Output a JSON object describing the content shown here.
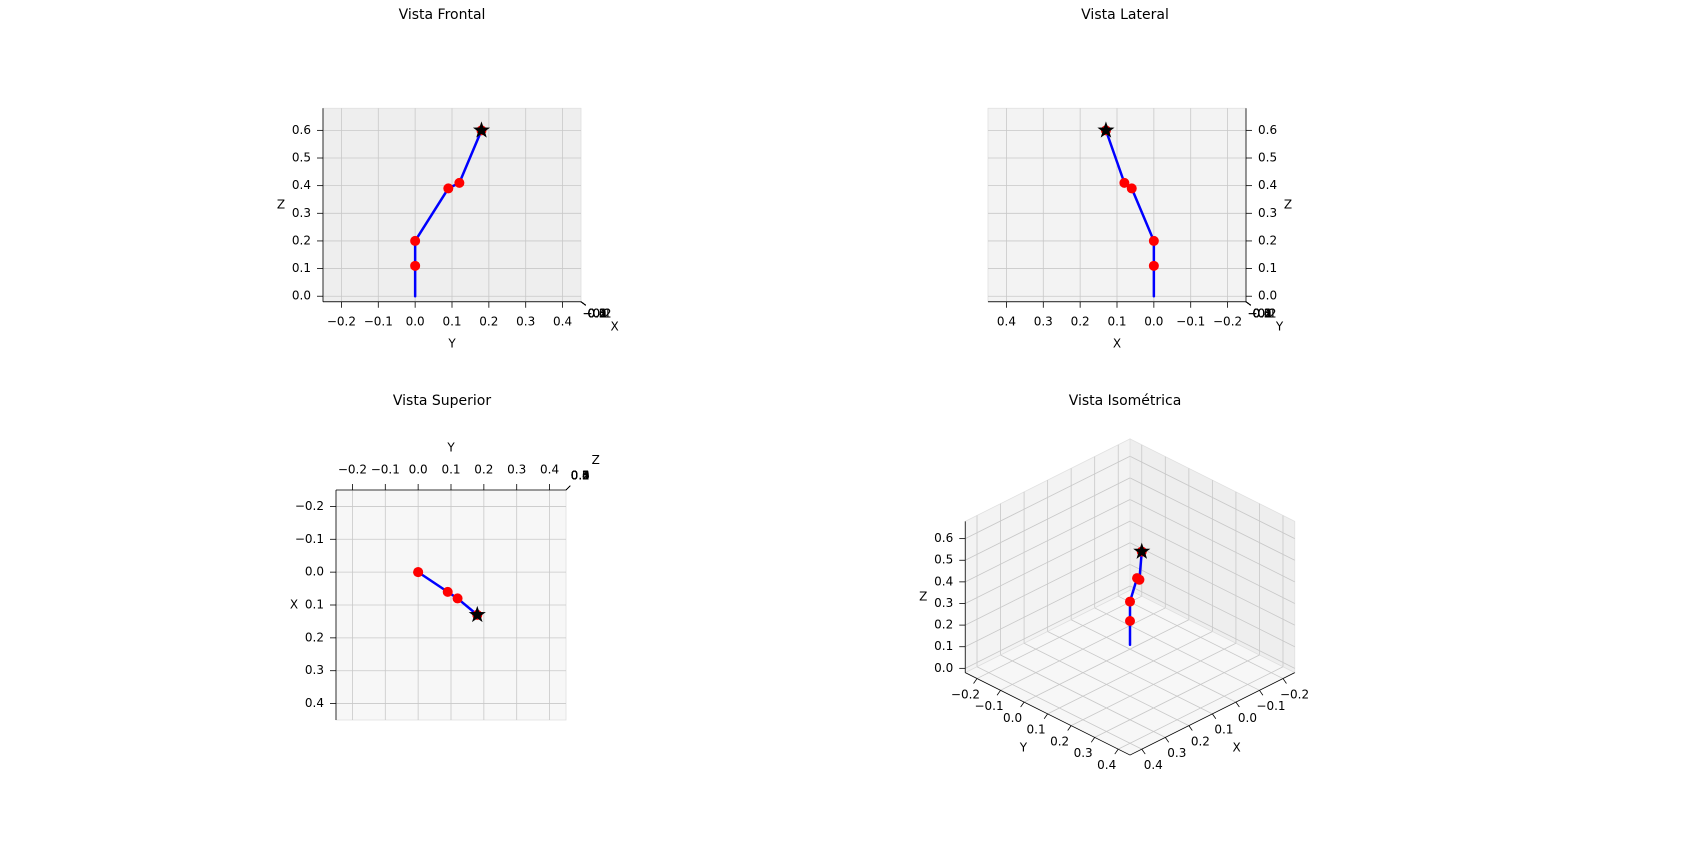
{
  "chart_data": [
    {
      "type": "line3d",
      "title": "Vista Frontal",
      "xlabel": "X",
      "ylabel": "Y",
      "zlabel": "Z",
      "elev": 0,
      "azim": 0,
      "xlim": [
        -0.25,
        0.45
      ],
      "ylim": [
        -0.25,
        0.45
      ],
      "zlim": [
        -0.02,
        0.68
      ],
      "xticks": [
        {
          "value": -0.2,
          "label": "−0.2"
        },
        {
          "value": -0.1,
          "label": "−0.1"
        },
        {
          "value": 0,
          "label": "0.0"
        },
        {
          "value": 0.1,
          "label": "0.1"
        },
        {
          "value": 0.2,
          "label": "0.2"
        },
        {
          "value": 0.3,
          "label": "0.3"
        },
        {
          "value": 0.4,
          "label": "0.4"
        }
      ],
      "yticks": [
        {
          "value": -0.2,
          "label": "−0.2"
        },
        {
          "value": -0.1,
          "label": "−0.1"
        },
        {
          "value": 0,
          "label": "0.0"
        },
        {
          "value": 0.1,
          "label": "0.1"
        },
        {
          "value": 0.2,
          "label": "0.2"
        },
        {
          "value": 0.3,
          "label": "0.3"
        },
        {
          "value": 0.4,
          "label": "0.4"
        }
      ],
      "zticks": [
        {
          "value": 0,
          "label": "0.0"
        },
        {
          "value": 0.1,
          "label": "0.1"
        },
        {
          "value": 0.2,
          "label": "0.2"
        },
        {
          "value": 0.3,
          "label": "0.3"
        },
        {
          "value": 0.4,
          "label": "0.4"
        },
        {
          "value": 0.5,
          "label": "0.5"
        },
        {
          "value": 0.6,
          "label": "0.6"
        }
      ],
      "links": {
        "color": "#0000ff",
        "x": [
          0,
          0,
          0,
          0.06,
          0.08,
          0.13
        ],
        "y": [
          0,
          0,
          0,
          0.09,
          0.12,
          0.18
        ],
        "z": [
          0,
          0.11,
          0.2,
          0.39,
          0.41,
          0.6
        ]
      },
      "joints": {
        "color": "#ff0000",
        "x": [
          0,
          0,
          0.06,
          0.08,
          0.13
        ],
        "y": [
          0,
          0,
          0.09,
          0.12,
          0.18
        ],
        "z": [
          0.11,
          0.2,
          0.39,
          0.41,
          0.6
        ]
      },
      "end_effector": {
        "color": "#000000",
        "x": [
          0.13
        ],
        "y": [
          0.18
        ],
        "z": [
          0.6
        ]
      }
    },
    {
      "type": "line3d",
      "title": "Vista Lateral",
      "xlabel": "X",
      "ylabel": "Y",
      "zlabel": "Z",
      "elev": 0,
      "azim": 90,
      "xlim": [
        -0.25,
        0.45
      ],
      "ylim": [
        -0.25,
        0.45
      ],
      "zlim": [
        -0.02,
        0.68
      ],
      "xticks": [
        {
          "value": -0.2,
          "label": "−0.2"
        },
        {
          "value": -0.1,
          "label": "−0.1"
        },
        {
          "value": 0,
          "label": "0.0"
        },
        {
          "value": 0.1,
          "label": "0.1"
        },
        {
          "value": 0.2,
          "label": "0.2"
        },
        {
          "value": 0.3,
          "label": "0.3"
        },
        {
          "value": 0.4,
          "label": "0.4"
        }
      ],
      "yticks": [
        {
          "value": -0.2,
          "label": "−0.2"
        },
        {
          "value": -0.1,
          "label": "−0.1"
        },
        {
          "value": 0,
          "label": "0.0"
        },
        {
          "value": 0.1,
          "label": "0.1"
        },
        {
          "value": 0.2,
          "label": "0.2"
        },
        {
          "value": 0.3,
          "label": "0.3"
        },
        {
          "value": 0.4,
          "label": "0.4"
        }
      ],
      "zticks": [
        {
          "value": 0,
          "label": "0.0"
        },
        {
          "value": 0.1,
          "label": "0.1"
        },
        {
          "value": 0.2,
          "label": "0.2"
        },
        {
          "value": 0.3,
          "label": "0.3"
        },
        {
          "value": 0.4,
          "label": "0.4"
        },
        {
          "value": 0.5,
          "label": "0.5"
        },
        {
          "value": 0.6,
          "label": "0.6"
        }
      ],
      "links": {
        "color": "#0000ff",
        "x": [
          0,
          0,
          0,
          0.06,
          0.08,
          0.13
        ],
        "y": [
          0,
          0,
          0,
          0.09,
          0.12,
          0.18
        ],
        "z": [
          0,
          0.11,
          0.2,
          0.39,
          0.41,
          0.6
        ]
      },
      "joints": {
        "color": "#ff0000",
        "x": [
          0,
          0,
          0.06,
          0.08,
          0.13
        ],
        "y": [
          0,
          0,
          0.09,
          0.12,
          0.18
        ],
        "z": [
          0.11,
          0.2,
          0.39,
          0.41,
          0.6
        ]
      },
      "end_effector": {
        "color": "#000000",
        "x": [
          0.13
        ],
        "y": [
          0.18
        ],
        "z": [
          0.6
        ]
      }
    },
    {
      "type": "line3d",
      "title": "Vista Superior",
      "xlabel": "X",
      "ylabel": "Y",
      "zlabel": "Z",
      "elev": 90,
      "azim": 0,
      "xlim": [
        -0.25,
        0.45
      ],
      "ylim": [
        -0.25,
        0.45
      ],
      "zlim": [
        -0.02,
        0.68
      ],
      "xticks": [
        {
          "value": -0.2,
          "label": "−0.2"
        },
        {
          "value": -0.1,
          "label": "−0.1"
        },
        {
          "value": 0,
          "label": "0.0"
        },
        {
          "value": 0.1,
          "label": "0.1"
        },
        {
          "value": 0.2,
          "label": "0.2"
        },
        {
          "value": 0.3,
          "label": "0.3"
        },
        {
          "value": 0.4,
          "label": "0.4"
        }
      ],
      "yticks": [
        {
          "value": -0.2,
          "label": "−0.2"
        },
        {
          "value": -0.1,
          "label": "−0.1"
        },
        {
          "value": 0,
          "label": "0.0"
        },
        {
          "value": 0.1,
          "label": "0.1"
        },
        {
          "value": 0.2,
          "label": "0.2"
        },
        {
          "value": 0.3,
          "label": "0.3"
        },
        {
          "value": 0.4,
          "label": "0.4"
        }
      ],
      "zticks": [
        {
          "value": 0,
          "label": "0.0"
        },
        {
          "value": 0.1,
          "label": "0.1"
        },
        {
          "value": 0.2,
          "label": "0.2"
        },
        {
          "value": 0.3,
          "label": "0.3"
        },
        {
          "value": 0.4,
          "label": "0.4"
        },
        {
          "value": 0.5,
          "label": "0.5"
        },
        {
          "value": 0.6,
          "label": "0.6"
        }
      ],
      "links": {
        "color": "#0000ff",
        "x": [
          0,
          0,
          0,
          0.06,
          0.08,
          0.13
        ],
        "y": [
          0,
          0,
          0,
          0.09,
          0.12,
          0.18
        ],
        "z": [
          0,
          0.11,
          0.2,
          0.39,
          0.41,
          0.6
        ]
      },
      "joints": {
        "color": "#ff0000",
        "x": [
          0,
          0,
          0.06,
          0.08,
          0.13
        ],
        "y": [
          0,
          0,
          0.09,
          0.12,
          0.18
        ],
        "z": [
          0.11,
          0.2,
          0.39,
          0.41,
          0.6
        ]
      },
      "end_effector": {
        "color": "#000000",
        "x": [
          0.13
        ],
        "y": [
          0.18
        ],
        "z": [
          0.6
        ]
      }
    },
    {
      "type": "line3d",
      "title": "Vista Isométrica",
      "xlabel": "X",
      "ylabel": "Y",
      "zlabel": "Z",
      "elev": 30,
      "azim": 45,
      "xlim": [
        -0.25,
        0.45
      ],
      "ylim": [
        -0.25,
        0.45
      ],
      "zlim": [
        -0.02,
        0.68
      ],
      "xticks": [
        {
          "value": -0.2,
          "label": "−0.2"
        },
        {
          "value": -0.1,
          "label": "−0.1"
        },
        {
          "value": 0,
          "label": "0.0"
        },
        {
          "value": 0.1,
          "label": "0.1"
        },
        {
          "value": 0.2,
          "label": "0.2"
        },
        {
          "value": 0.3,
          "label": "0.3"
        },
        {
          "value": 0.4,
          "label": "0.4"
        }
      ],
      "yticks": [
        {
          "value": -0.2,
          "label": "−0.2"
        },
        {
          "value": -0.1,
          "label": "−0.1"
        },
        {
          "value": 0,
          "label": "0.0"
        },
        {
          "value": 0.1,
          "label": "0.1"
        },
        {
          "value": 0.2,
          "label": "0.2"
        },
        {
          "value": 0.3,
          "label": "0.3"
        },
        {
          "value": 0.4,
          "label": "0.4"
        }
      ],
      "zticks": [
        {
          "value": 0,
          "label": "0.0"
        },
        {
          "value": 0.1,
          "label": "0.1"
        },
        {
          "value": 0.2,
          "label": "0.2"
        },
        {
          "value": 0.3,
          "label": "0.3"
        },
        {
          "value": 0.4,
          "label": "0.4"
        },
        {
          "value": 0.5,
          "label": "0.5"
        },
        {
          "value": 0.6,
          "label": "0.6"
        }
      ],
      "links": {
        "color": "#0000ff",
        "x": [
          0,
          0,
          0,
          0.06,
          0.08,
          0.13
        ],
        "y": [
          0,
          0,
          0,
          0.09,
          0.12,
          0.18
        ],
        "z": [
          0,
          0.11,
          0.2,
          0.39,
          0.41,
          0.6
        ]
      },
      "joints": {
        "color": "#ff0000",
        "x": [
          0,
          0,
          0.06,
          0.08,
          0.13
        ],
        "y": [
          0,
          0,
          0.09,
          0.12,
          0.18
        ],
        "z": [
          0.11,
          0.2,
          0.39,
          0.41,
          0.6
        ]
      },
      "end_effector": {
        "color": "#000000",
        "x": [
          0.13
        ],
        "y": [
          0.18
        ],
        "z": [
          0.6
        ]
      }
    }
  ]
}
